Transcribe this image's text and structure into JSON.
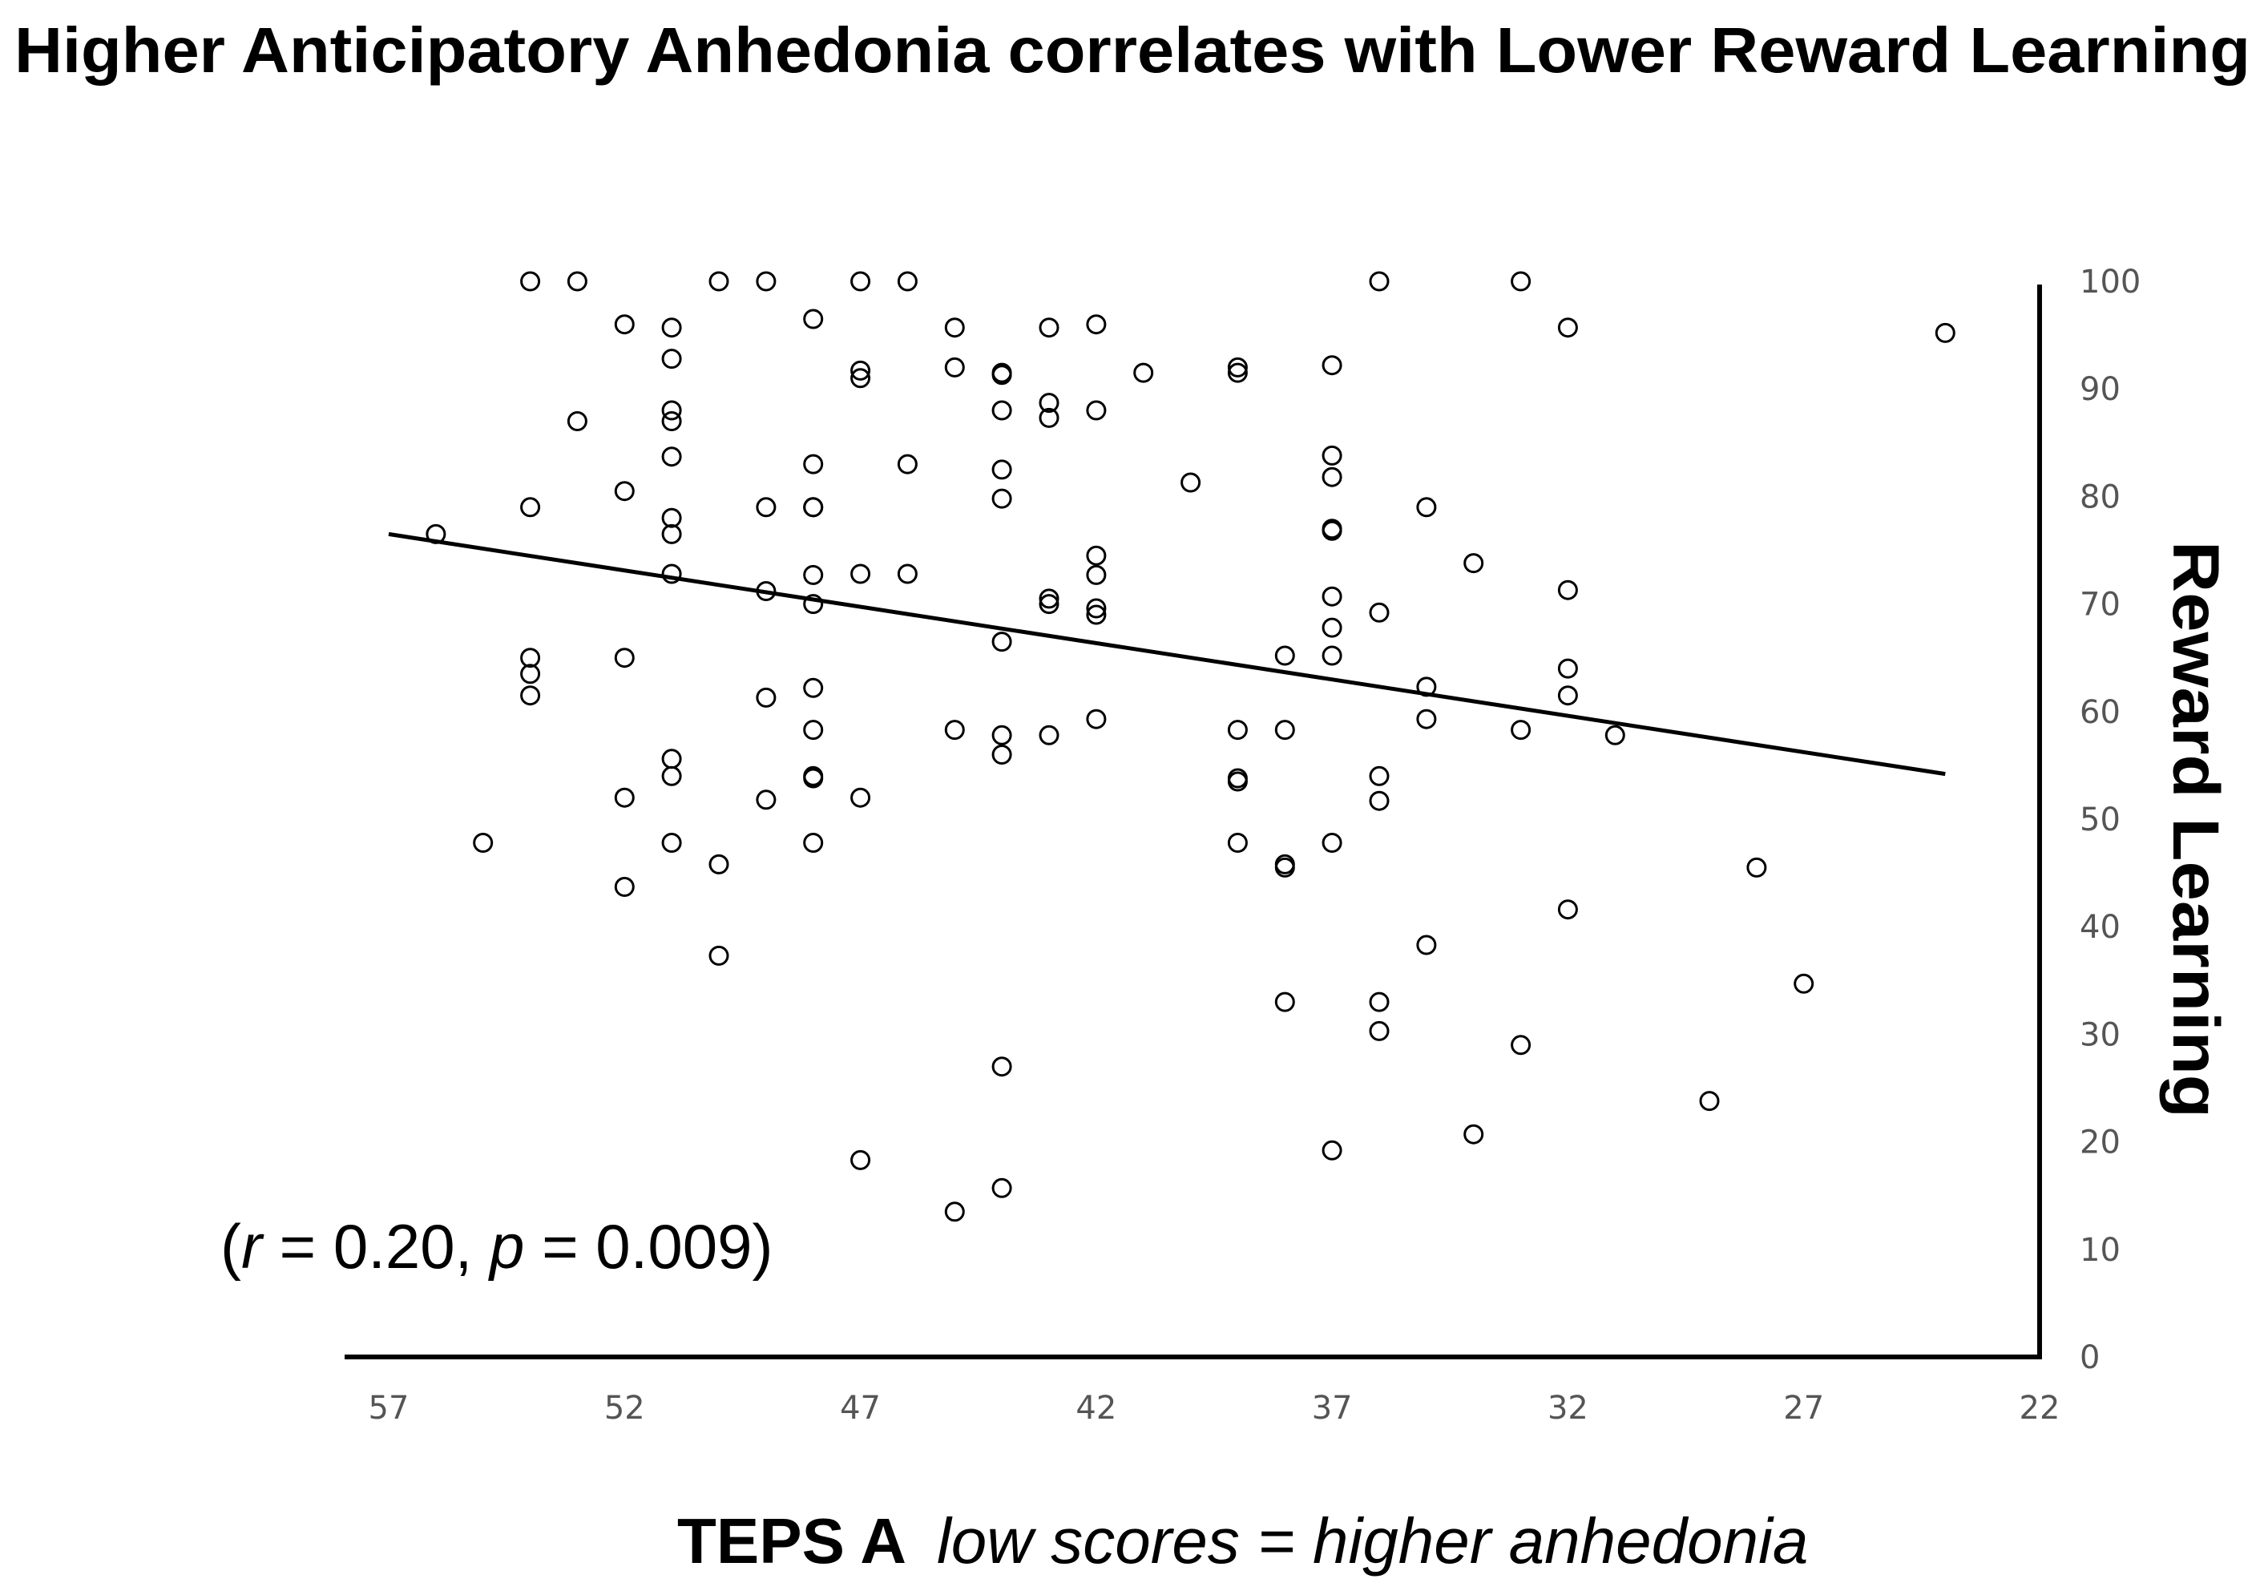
{
  "chart_data": {
    "type": "scatter",
    "title": "Higher Anticipatory Anhedonia correlates with Lower Reward Learning",
    "ylabel": "Reward Learning",
    "xlabel": {
      "main": "TEPS A",
      "note": "low scores = higher anhedonia"
    },
    "annotation": {
      "open": "(",
      "r_symbol": "r",
      "r_text": " = 0.20, ",
      "p_symbol": "p",
      "p_text": " = 0.009)"
    },
    "x_axis": {
      "range": [
        57,
        22
      ],
      "reversed": true,
      "ticks": [
        57,
        52,
        47,
        42,
        37,
        32,
        27,
        22
      ]
    },
    "y_axis": {
      "range": [
        0,
        100
      ],
      "ticks": [
        0,
        10,
        20,
        30,
        40,
        50,
        60,
        70,
        80,
        90,
        100
      ],
      "position": "right"
    },
    "trendline": {
      "x": [
        57,
        24
      ],
      "y": [
        76.5,
        54.2
      ]
    },
    "points": [
      [
        56,
        76.5
      ],
      [
        55,
        47.8
      ],
      [
        54,
        100
      ],
      [
        54,
        79
      ],
      [
        54,
        65
      ],
      [
        54,
        63.5
      ],
      [
        54,
        61.5
      ],
      [
        53,
        100
      ],
      [
        53,
        87
      ],
      [
        52,
        96
      ],
      [
        52,
        80.5
      ],
      [
        52,
        65
      ],
      [
        52,
        52
      ],
      [
        52,
        43.7
      ],
      [
        51,
        95.7
      ],
      [
        51,
        92.8
      ],
      [
        51,
        88
      ],
      [
        51,
        87
      ],
      [
        51,
        83.7
      ],
      [
        51,
        78
      ],
      [
        51,
        76.5
      ],
      [
        51,
        72.8
      ],
      [
        51,
        55.6
      ],
      [
        51,
        54
      ],
      [
        51,
        47.8
      ],
      [
        50,
        100
      ],
      [
        50,
        45.8
      ],
      [
        50,
        37.3
      ],
      [
        49,
        100
      ],
      [
        49,
        79
      ],
      [
        49,
        71.2
      ],
      [
        49,
        61.3
      ],
      [
        49,
        51.8
      ],
      [
        48,
        96.5
      ],
      [
        48,
        83
      ],
      [
        48,
        79
      ],
      [
        48,
        79
      ],
      [
        48,
        72.7
      ],
      [
        48,
        70
      ],
      [
        48,
        62.2
      ],
      [
        48,
        58.3
      ],
      [
        48,
        54
      ],
      [
        48,
        53.8
      ],
      [
        48,
        47.8
      ],
      [
        47,
        100
      ],
      [
        47,
        91.7
      ],
      [
        47,
        91
      ],
      [
        47,
        72.8
      ],
      [
        47,
        52
      ],
      [
        47,
        18.3
      ],
      [
        46,
        100
      ],
      [
        46,
        83
      ],
      [
        46,
        72.8
      ],
      [
        45,
        95.7
      ],
      [
        45,
        92
      ],
      [
        45,
        58.3
      ],
      [
        45,
        13.5
      ],
      [
        44,
        91.5
      ],
      [
        44,
        91.3
      ],
      [
        44,
        88
      ],
      [
        44,
        82.5
      ],
      [
        44,
        79.8
      ],
      [
        44,
        66.5
      ],
      [
        44,
        57.8
      ],
      [
        44,
        56
      ],
      [
        44,
        27
      ],
      [
        44,
        15.7
      ],
      [
        43,
        95.7
      ],
      [
        43,
        88.7
      ],
      [
        43,
        87.3
      ],
      [
        43,
        70.5
      ],
      [
        43,
        70
      ],
      [
        43,
        57.8
      ],
      [
        42,
        96
      ],
      [
        42,
        88
      ],
      [
        42,
        74.5
      ],
      [
        42,
        72.7
      ],
      [
        42,
        69.6
      ],
      [
        42,
        69
      ],
      [
        42,
        59.3
      ],
      [
        41,
        91.5
      ],
      [
        40,
        81.3
      ],
      [
        39,
        92
      ],
      [
        39,
        91.5
      ],
      [
        39,
        58.3
      ],
      [
        39,
        53.8
      ],
      [
        39,
        53.5
      ],
      [
        39,
        47.8
      ],
      [
        38,
        65.2
      ],
      [
        38,
        58.3
      ],
      [
        38,
        45.8
      ],
      [
        38,
        45.5
      ],
      [
        38,
        33
      ],
      [
        37,
        92.2
      ],
      [
        37,
        83.8
      ],
      [
        37,
        81.8
      ],
      [
        37,
        77
      ],
      [
        37,
        76.8
      ],
      [
        37,
        70.7
      ],
      [
        37,
        67.8
      ],
      [
        37,
        65.2
      ],
      [
        37,
        47.8
      ],
      [
        37,
        19.2
      ],
      [
        36,
        100
      ],
      [
        36,
        69.2
      ],
      [
        36,
        54
      ],
      [
        36,
        51.7
      ],
      [
        36,
        33
      ],
      [
        36,
        30.3
      ],
      [
        35,
        79
      ],
      [
        35,
        62.3
      ],
      [
        35,
        59.3
      ],
      [
        35,
        38.3
      ],
      [
        34,
        73.8
      ],
      [
        34,
        20.7
      ],
      [
        33,
        100
      ],
      [
        33,
        58.3
      ],
      [
        33,
        29
      ],
      [
        32,
        95.7
      ],
      [
        32,
        71.3
      ],
      [
        32,
        64
      ],
      [
        32,
        61.5
      ],
      [
        32,
        41.6
      ],
      [
        31,
        57.8
      ],
      [
        29,
        23.8
      ],
      [
        28,
        45.5
      ],
      [
        27,
        34.7
      ],
      [
        24,
        95.2
      ]
    ]
  }
}
